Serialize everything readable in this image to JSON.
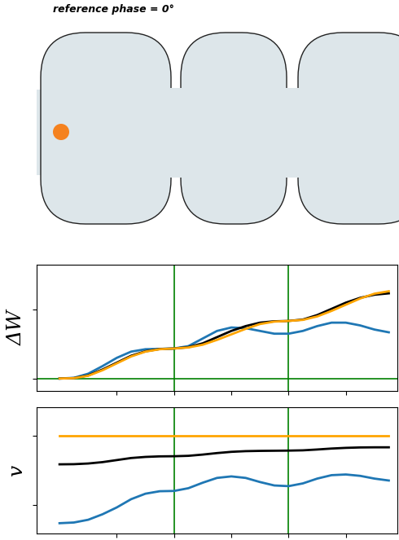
{
  "diagram": {
    "title": "reference phase = 0°"
  },
  "chart_data": [
    {
      "type": "line",
      "y_label": "ΔW",
      "tick_labels": false,
      "x": [
        0,
        0.125,
        0.25,
        0.375,
        0.5,
        0.625,
        0.75,
        0.875,
        1.0,
        1.125,
        1.25,
        1.375,
        1.5,
        1.625,
        1.75,
        1.875,
        2.0,
        2.125,
        2.25,
        2.375,
        2.5,
        2.625,
        2.75,
        2.875
      ],
      "xlim": [
        -0.2,
        2.95
      ],
      "xticks": [
        0.5,
        1.0,
        1.5,
        2.0,
        2.5
      ],
      "ylim": [
        -0.18,
        1.65
      ],
      "yticks": [
        0,
        1
      ],
      "reference_lines": {
        "x": [
          1,
          2
        ],
        "y": [
          0
        ]
      },
      "series": [
        {
          "color": "#1f77b4",
          "values": [
            0,
            0.01,
            0.07,
            0.18,
            0.3,
            0.39,
            0.425,
            0.43,
            0.435,
            0.47,
            0.58,
            0.69,
            0.74,
            0.73,
            0.69,
            0.65,
            0.65,
            0.69,
            0.76,
            0.81,
            0.81,
            0.77,
            0.71,
            0.67
          ]
        },
        {
          "color": "#000000",
          "values": [
            0,
            0.006,
            0.045,
            0.13,
            0.23,
            0.33,
            0.395,
            0.428,
            0.435,
            0.455,
            0.51,
            0.6,
            0.69,
            0.76,
            0.81,
            0.83,
            0.835,
            0.855,
            0.92,
            1.01,
            1.1,
            1.17,
            1.215,
            1.235
          ]
        },
        {
          "color": "#ffa500",
          "values": [
            0,
            0.005,
            0.04,
            0.12,
            0.22,
            0.32,
            0.39,
            0.425,
            0.435,
            0.45,
            0.49,
            0.56,
            0.64,
            0.72,
            0.79,
            0.825,
            0.835,
            0.85,
            0.9,
            0.98,
            1.07,
            1.16,
            1.23,
            1.265
          ]
        }
      ]
    },
    {
      "type": "line",
      "y_label": "v",
      "tick_labels": false,
      "x": [
        0,
        0.125,
        0.25,
        0.375,
        0.5,
        0.625,
        0.75,
        0.875,
        1.0,
        1.125,
        1.25,
        1.375,
        1.5,
        1.625,
        1.75,
        1.875,
        2.0,
        2.125,
        2.25,
        2.375,
        2.5,
        2.625,
        2.75,
        2.875
      ],
      "xlim": [
        -0.2,
        2.95
      ],
      "xticks": [
        0.5,
        1.0,
        1.5,
        2.0,
        2.5
      ],
      "ylim": [
        0.29,
        1.21
      ],
      "yticks": [
        0.5,
        1.0
      ],
      "reference_lines": {
        "x": [
          1,
          2
        ]
      },
      "series": [
        {
          "color": "#1f77b4",
          "values": [
            0.365,
            0.37,
            0.39,
            0.43,
            0.48,
            0.54,
            0.58,
            0.598,
            0.6,
            0.62,
            0.66,
            0.695,
            0.706,
            0.695,
            0.665,
            0.64,
            0.635,
            0.655,
            0.69,
            0.715,
            0.72,
            0.71,
            0.69,
            0.676
          ]
        },
        {
          "color": "#000000",
          "values": [
            0.794,
            0.795,
            0.8,
            0.81,
            0.825,
            0.84,
            0.848,
            0.852,
            0.853,
            0.856,
            0.865,
            0.876,
            0.885,
            0.89,
            0.892,
            0.893,
            0.894,
            0.896,
            0.902,
            0.909,
            0.914,
            0.917,
            0.918,
            0.918
          ]
        },
        {
          "color": "#ffa500",
          "values": [
            1.0,
            1.0,
            1.0,
            1.0,
            1.0,
            1.0,
            1.0,
            1.0,
            1.0,
            1.0,
            1.0,
            1.0,
            1.0,
            1.0,
            1.0,
            1.0,
            1.0,
            1.0,
            1.0,
            1.0,
            1.0,
            1.0,
            1.0,
            1.0
          ]
        }
      ]
    }
  ]
}
